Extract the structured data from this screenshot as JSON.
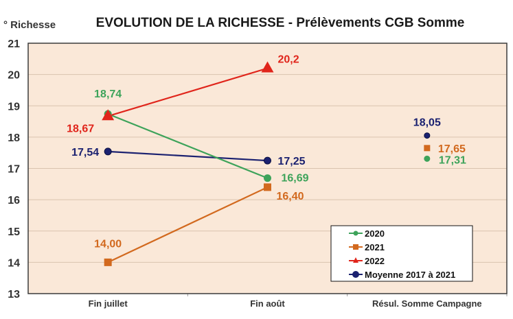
{
  "chart_data": {
    "type": "line",
    "title": "EVOLUTION DE LA RICHESSE - Prélèvements CGB Somme",
    "ylabel": "° Richesse",
    "xlabel": "",
    "ylim": [
      13,
      21
    ],
    "yticks": [
      "13",
      "14",
      "15",
      "16",
      "17",
      "18",
      "19",
      "20",
      "21"
    ],
    "categories": [
      "Fin juillet",
      "Fin août",
      "Résul. Somme Campagne"
    ],
    "grid": true,
    "legend_position": "bottom-right",
    "series": [
      {
        "name": "2020",
        "color": "#3DA35A",
        "marker": "circle",
        "points": [
          {
            "category": "Fin juillet",
            "value": 18.74,
            "label": "18,74",
            "connected": true
          },
          {
            "category": "Fin août",
            "value": 16.69,
            "label": "16,69",
            "connected": true
          },
          {
            "category": "Résul. Somme Campagne",
            "value": 17.31,
            "label": "17,31",
            "connected": false
          }
        ]
      },
      {
        "name": "2021",
        "color": "#D2691E",
        "marker": "square",
        "points": [
          {
            "category": "Fin juillet",
            "value": 14.0,
            "label": "14,00",
            "connected": true
          },
          {
            "category": "Fin août",
            "value": 16.4,
            "label": "16,40",
            "connected": true
          },
          {
            "category": "Résul. Somme Campagne",
            "value": 17.65,
            "label": "17,65",
            "connected": false
          }
        ]
      },
      {
        "name": "2022",
        "color": "#E0251B",
        "marker": "triangle",
        "points": [
          {
            "category": "Fin juillet",
            "value": 18.67,
            "label": "18,67",
            "connected": true
          },
          {
            "category": "Fin août",
            "value": 20.2,
            "label": "20,2",
            "connected": true
          }
        ]
      },
      {
        "name": "Moyenne  2017 à 2021",
        "color": "#1B2170",
        "marker": "circle",
        "points": [
          {
            "category": "Fin juillet",
            "value": 17.54,
            "label": "17,54",
            "connected": true
          },
          {
            "category": "Fin août",
            "value": 17.25,
            "label": "17,25",
            "connected": true
          },
          {
            "category": "Résul. Somme Campagne",
            "value": 18.05,
            "label": "18,05",
            "connected": false
          }
        ]
      }
    ]
  }
}
